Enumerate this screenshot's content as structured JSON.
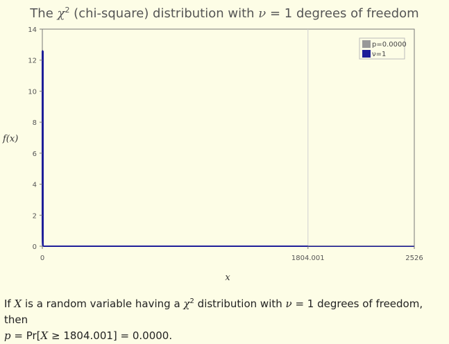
{
  "title": {
    "prefix": "The",
    "symbol": "χ",
    "sup": "2",
    "middle": "(chi-square) distribution with",
    "nu_symbol": "ν",
    "suffix": "= 1 degrees of freedom"
  },
  "chart_data": {
    "type": "area",
    "ylabel": "f(x)",
    "xlabel": "x",
    "xlim": [
      0,
      2526
    ],
    "ylim": [
      0,
      14
    ],
    "y_ticks": [
      "0",
      "2",
      "4",
      "6",
      "8",
      "10",
      "12",
      "14"
    ],
    "x_ticks": [
      "0",
      "1804.001",
      "2526"
    ],
    "x_tick_values": [
      0,
      1804.001,
      2526
    ],
    "grid": "vertical line at x=1804.001",
    "legend_position": "top-right",
    "series": [
      {
        "name": "p=0.0000",
        "color": "#999999",
        "shaded_from": 1804.001,
        "values": [
          0,
          0
        ]
      },
      {
        "name": "ν=1",
        "color": "#1d1d99",
        "x": [
          0.001,
          0.0016,
          0.0025,
          0.004,
          0.006,
          0.01,
          0.02,
          0.05,
          0.1,
          0.2,
          0.5,
          1,
          2,
          5,
          10,
          50,
          200,
          1000,
          2526
        ],
        "y": [
          12.6,
          9.97,
          7.97,
          6.3,
          5.15,
          3.99,
          2.81,
          1.75,
          1.2,
          0.81,
          0.44,
          0.24,
          0.1,
          0.015,
          0.0009,
          0,
          0,
          0,
          0
        ]
      }
    ]
  },
  "caption": {
    "line1_a": "If",
    "X": "X",
    "line1_b": "is a random variable having a",
    "chi": "χ",
    "sup": "2",
    "line1_c": "distribution with",
    "nu": "ν",
    "line1_d": "= 1 degrees of freedom, then",
    "p": "p",
    "line2_a": "= Pr[",
    "X2": "X",
    "line2_b": "≥ 1804.001] = 0.0000."
  }
}
